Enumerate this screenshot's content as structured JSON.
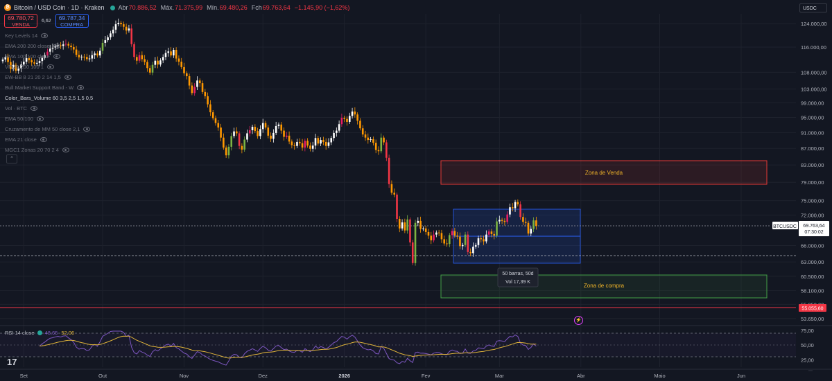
{
  "header": {
    "title": "Bitcoin / USD Coin · 1D · Kraken",
    "open_label": "Abr",
    "open": "70.886,52",
    "high_label": "Máx.",
    "high": "71.375,99",
    "low_label": "Mín.",
    "low": "69.480,26",
    "close_label": "Fch",
    "close": "69.763,64",
    "change": "−1.145,90 (−1,62%)"
  },
  "trade": {
    "sell_price": "69.780,72",
    "sell_label": "VENDA",
    "spread": "6,62",
    "buy_price": "69.787,34",
    "buy_label": "COMPRA"
  },
  "indicators": [
    "Key Levels 14",
    "EMA 200 200 close",
    "SMA 100 100 close",
    "VPVR 200 100 1",
    "EW-BB 8 21 20 2 14 1,5",
    "Bull Market Support Band - W",
    "Color_Bars_Volume 60 3,5 2,5 1,5 0,5",
    "Vol · BTC",
    "EMA 50/100",
    "Cruzamento de MM 50 close 2,1",
    "EMA 21 close",
    "MGC1 Zonas 20 70 2 4"
  ],
  "currency": "USDC",
  "symbol_tag": "BTCUSDC",
  "last_price": "69.763,64",
  "countdown": "07:30:02",
  "level_tag": "55.055,60",
  "collapse_glyph": "⌃",
  "bolt_glyph": "⚡",
  "tv_logo": "17",
  "grip": "⋯",
  "rsi": {
    "label": "RSI 14 close",
    "value": "48,65",
    "ma": "52,06",
    "ticks": [
      "75,00",
      "50,00",
      "25,00"
    ],
    "levels": [
      70,
      50,
      30
    ]
  },
  "zones": {
    "sell": "Zona de Venda",
    "buy": "Zona de compra"
  },
  "measure": {
    "bars": "50 barras, 50d",
    "vol": "Vol 17,39 K"
  },
  "colors": {
    "bg": "#131722",
    "up": "#ffffff",
    "down": "#ff9800",
    "strong_down": "#f23645",
    "green_bar": "#7cb342",
    "pink_bar": "#e91e63",
    "sell_zone": "#e53935",
    "buy_zone": "#43a047",
    "range_box": "#2962ff",
    "rsi": "#7e57c2",
    "rsi_ma": "#e0b43a"
  },
  "chart_data": {
    "type": "candlestick",
    "y_axis_ticks": [
      "124.000,00",
      "116.000,00",
      "108.000,00",
      "103.000,00",
      "99.000,00",
      "95.000,00",
      "91.000,00",
      "87.000,00",
      "83.000,00",
      "79.000,00",
      "75.000,00",
      "72.000,00",
      "66.000,00",
      "63.000,00",
      "60.500,00",
      "58.100,00",
      "55.850,00",
      "53.650,00"
    ],
    "y_axis_values": [
      124000,
      116000,
      108000,
      103000,
      99000,
      95000,
      91000,
      87000,
      83000,
      79000,
      75000,
      72000,
      66000,
      63000,
      60500,
      58100,
      55850,
      53650
    ],
    "x_axis_ticks": [
      "Set",
      "Out",
      "Nov",
      "Dez",
      "2026",
      "Fev",
      "Mar",
      "Abr",
      "Maio",
      "Jun"
    ],
    "x_axis_dates": [
      "2025-09-01",
      "2025-10-01",
      "2025-11-01",
      "2025-12-01",
      "2026-01-01",
      "2026-02-01",
      "2026-03-01",
      "2026-04-01",
      "2026-05-01",
      "2026-06-01"
    ],
    "first_candle_date": "2025-08-24",
    "scale": "log",
    "closes": [
      112000,
      112800,
      111200,
      109000,
      110300,
      108500,
      109200,
      110400,
      111300,
      112400,
      111800,
      111100,
      110700,
      110900,
      111500,
      112600,
      113400,
      114500,
      115500,
      115800,
      116300,
      116600,
      116400,
      116900,
      117100,
      116500,
      116000,
      115200,
      113500,
      112700,
      112900,
      112800,
      112100,
      112300,
      113400,
      113900,
      113300,
      114800,
      117400,
      118300,
      119300,
      120600,
      121900,
      123800,
      124300,
      123800,
      122900,
      121600,
      122300,
      117000,
      112800,
      111600,
      113400,
      112100,
      111200,
      109300,
      107900,
      110300,
      111600,
      110400,
      111700,
      112800,
      114100,
      114600,
      113300,
      115100,
      112300,
      111300,
      109600,
      107700,
      106800,
      104000,
      101800,
      103600,
      105500,
      104700,
      102100,
      100900,
      98600,
      96400,
      94800,
      93500,
      92300,
      89700,
      87200,
      85300,
      87400,
      90100,
      91300,
      90800,
      87600,
      86700,
      89200,
      90800,
      91600,
      92500,
      91400,
      90100,
      91900,
      93500,
      92300,
      90200,
      89400,
      90900,
      92700,
      93100,
      91500,
      89900,
      90200,
      88700,
      87800,
      87600,
      88600,
      88300,
      87200,
      88900,
      87700,
      86900,
      87700,
      89600,
      88200,
      89100,
      88600,
      87600,
      88500,
      89600,
      90900,
      91500,
      93200,
      94900,
      94600,
      93800,
      95400,
      96600,
      95800,
      94100,
      92100,
      90500,
      89700,
      89100,
      89300,
      88400,
      86600,
      86300,
      89700,
      88500,
      84700,
      78600,
      76700,
      76300,
      71200,
      69300,
      70500,
      68900,
      71100,
      66600,
      62800,
      70400,
      70800,
      69200,
      69300,
      68600,
      67900,
      67000,
      68100,
      68500,
      68400,
      67200,
      66400,
      66300,
      68000,
      68800,
      67900,
      67700,
      65900,
      66100,
      68100,
      64800,
      64600,
      65800,
      66100,
      67400,
      67200,
      66800,
      68100,
      68700,
      68200,
      67900,
      70700,
      71000,
      70800,
      70600,
      72100,
      73600,
      73400,
      74700,
      74200,
      71600,
      70600,
      70400,
      68300,
      69200,
      70900,
      69800
    ]
  }
}
